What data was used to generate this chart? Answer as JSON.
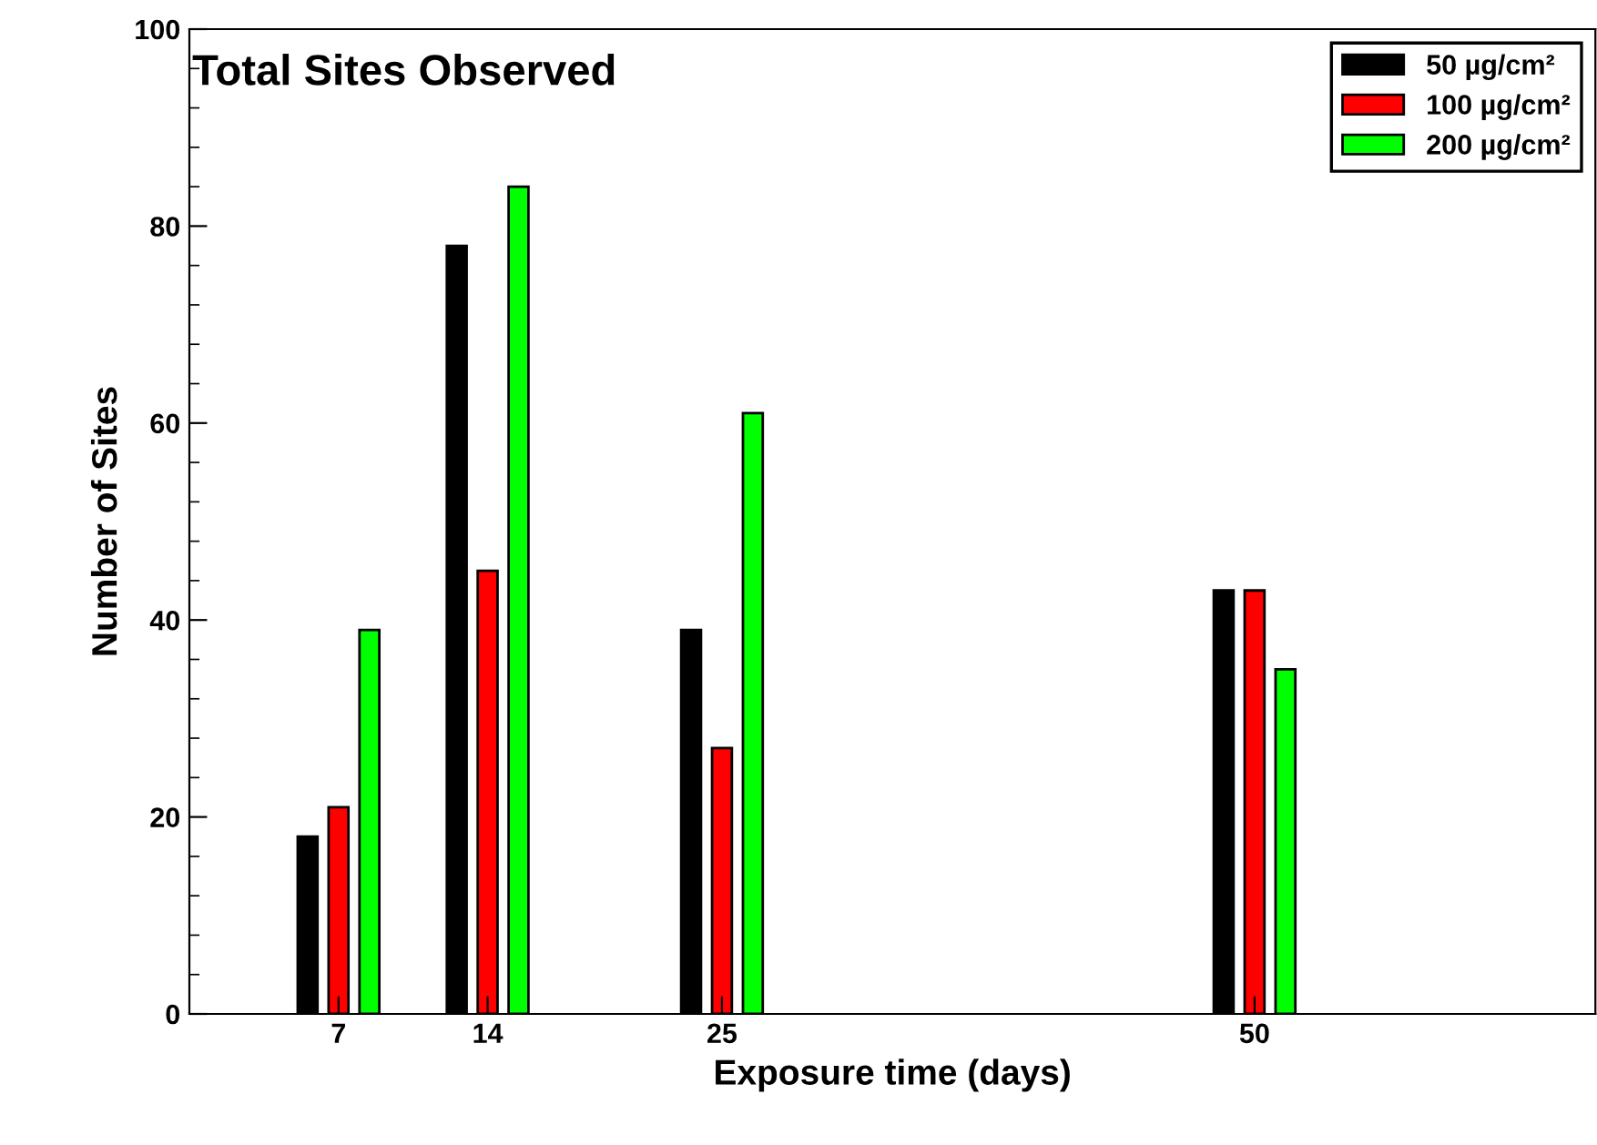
{
  "chart_data": {
    "type": "bar",
    "title": "Total Sites Observed",
    "xlabel": "Exposure time (days)",
    "ylabel": "Number of Sites",
    "x": [
      7,
      14,
      25,
      50
    ],
    "series": [
      {
        "name": "50 µg/cm²",
        "color": "#000000",
        "values": [
          18,
          78,
          39,
          43
        ]
      },
      {
        "name": "100 µg/cm²",
        "color": "#ff0000",
        "values": [
          21,
          45,
          27,
          43
        ]
      },
      {
        "name": "200 µg/cm²",
        "color": "#00ff00",
        "values": [
          39,
          84,
          61,
          35
        ]
      }
    ],
    "xlim": [
      0,
      66
    ],
    "xticks": [
      7,
      14,
      25,
      50
    ],
    "ylim": [
      0,
      100
    ],
    "yticks": [
      0,
      20,
      40,
      60,
      80,
      100
    ],
    "grid": false,
    "legend": "top right"
  }
}
